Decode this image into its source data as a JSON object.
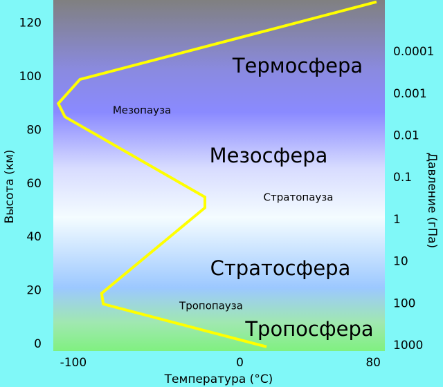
{
  "chart_data": {
    "type": "line",
    "x_label": "Температура (°C)",
    "y_label": "Высота (км)",
    "y2_label": "Давление (гПа)",
    "x": [
      16,
      -82,
      -83,
      -21,
      -21,
      -105,
      -109,
      -96,
      82
    ],
    "values": [
      -1,
      15,
      19,
      51,
      55,
      85,
      90,
      99,
      128
    ],
    "color": "#ffff00",
    "xlim": [
      -112,
      87
    ],
    "xticks": [
      -100,
      0,
      80
    ],
    "ylim": [
      -2.6,
      128.7
    ],
    "yticks": [
      0,
      20,
      40,
      60,
      80,
      100,
      120
    ],
    "y2scale": "log",
    "y2lim": [
      1355,
      5.8e-06
    ],
    "y2ticks": [
      0.0001,
      0.001,
      0.01,
      0.1,
      1,
      10,
      100,
      1000
    ],
    "annotations": [
      "Термосфера",
      "Мезопауза",
      "Мезосфера",
      "Стратопауза",
      "Стратосфера",
      "Тропопауза",
      "Тропосфера"
    ],
    "grid": false
  }
}
